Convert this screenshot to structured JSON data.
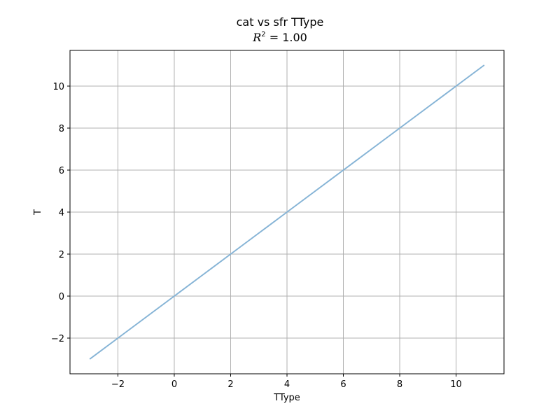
{
  "chart_data": {
    "type": "line",
    "title": "cat vs sfr TType",
    "subtitle_symbol": "R",
    "subtitle_exponent": "2",
    "subtitle_value": " = 1.00",
    "xlabel": "TType",
    "ylabel": "T",
    "xlim": [
      -3.7,
      11.7
    ],
    "ylim": [
      -3.7,
      11.7
    ],
    "xticks": [
      -2,
      0,
      2,
      4,
      6,
      8,
      10
    ],
    "yticks": [
      -2,
      0,
      2,
      4,
      6,
      8,
      10
    ],
    "xtick_labels": [
      "−2",
      "0",
      "2",
      "4",
      "6",
      "8",
      "10"
    ],
    "ytick_labels": [
      "−2",
      "0",
      "2",
      "4",
      "6",
      "8",
      "10"
    ],
    "grid": true,
    "legend": "none",
    "series": [
      {
        "color": "#86b4d6",
        "x": [
          -3,
          -2,
          -1,
          0,
          1,
          2,
          3,
          4,
          5,
          6,
          7,
          8,
          9,
          10,
          11
        ],
        "y": [
          -3,
          -2,
          -1,
          0,
          1,
          2,
          3,
          4,
          5,
          6,
          7,
          8,
          9,
          10,
          11
        ]
      }
    ]
  }
}
